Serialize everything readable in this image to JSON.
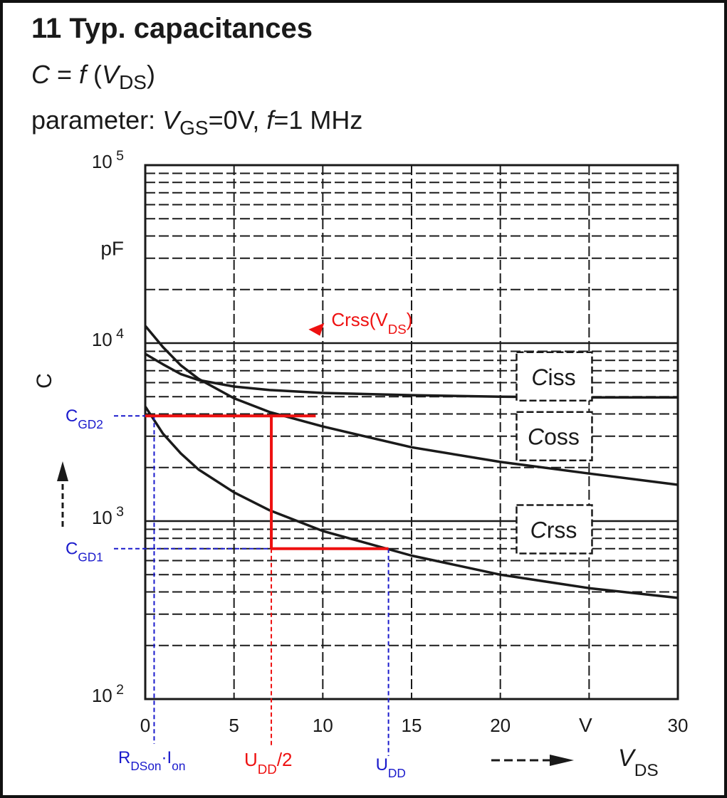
{
  "header": {
    "title": "11 Typ. capacitances",
    "func_c": "C",
    "func_eq": " = ",
    "func_f": "f",
    "func_open": " (",
    "func_v": "V",
    "func_sub": "DS",
    "func_close": ")",
    "param_prefix": "parameter: ",
    "param_v": "V",
    "param_sub": "GS",
    "param_mid": "=0V, ",
    "param_f": "f",
    "param_end": "=1 MHz"
  },
  "colors": {
    "curve": "#1a1a1a",
    "grid": "#1a1a1a",
    "red": "#ee1111",
    "blue": "#1a1acc"
  },
  "chart_data": {
    "type": "line",
    "x_scale": "linear",
    "y_scale": "log",
    "xlim": [
      0,
      30
    ],
    "ylim": [
      100,
      100000
    ],
    "x_ticks": [
      {
        "value": 0,
        "label": "0"
      },
      {
        "value": 5,
        "label": "5"
      },
      {
        "value": 10,
        "label": "10"
      },
      {
        "value": 15,
        "label": "15"
      },
      {
        "value": 20,
        "label": "20"
      },
      {
        "value": 30,
        "label": "30"
      }
    ],
    "x_unit_label": "V",
    "y_ticks": [
      {
        "value": 100,
        "base": "10",
        "exp": "2"
      },
      {
        "value": 1000,
        "base": "10",
        "exp": "3"
      },
      {
        "value": 10000,
        "base": "10",
        "exp": "4"
      },
      {
        "value": 100000,
        "base": "10",
        "exp": "5"
      }
    ],
    "y_unit_label": "pF",
    "ylabel": "C",
    "xlabel": "V",
    "xlabel_sub": "DS",
    "grid": true,
    "series": [
      {
        "name": "C",
        "sub": "iss",
        "label_x": 23,
        "label_y": 6500,
        "x": [
          0,
          1,
          2,
          3,
          5,
          7,
          10,
          15,
          20,
          25,
          30
        ],
        "y": [
          8700,
          7600,
          6700,
          6200,
          5700,
          5450,
          5250,
          5100,
          5000,
          4950,
          4950
        ]
      },
      {
        "name": "C",
        "sub": "oss",
        "label_x": 23,
        "label_y": 3000,
        "x": [
          0,
          1,
          2,
          3,
          5,
          7,
          10,
          15,
          20,
          25,
          30
        ],
        "y": [
          12500,
          9500,
          7500,
          6300,
          4900,
          4100,
          3400,
          2600,
          2150,
          1850,
          1600
        ]
      },
      {
        "name": "C",
        "sub": "rss",
        "label_x": 23,
        "label_y": 900,
        "x": [
          0,
          1,
          2,
          3,
          5,
          7,
          10,
          15,
          20,
          25,
          30
        ],
        "y": [
          4400,
          3100,
          2400,
          1950,
          1450,
          1150,
          880,
          640,
          500,
          420,
          370
        ]
      }
    ],
    "annotations": {
      "crss_label": "Crss(V",
      "crss_label_sub": "DS",
      "crss_label_close": ")",
      "crss_label_at": [
        10,
        12500
      ],
      "cgd2": {
        "text": "C",
        "sub": "GD2",
        "y": 3900
      },
      "cgd1": {
        "text": "C",
        "sub": "GD1",
        "y": 700
      },
      "rdson_x": 0.5,
      "rdson_label": "R",
      "rdson_sub1": "DSon",
      "rdson_mid": "·I",
      "rdson_sub2": "on",
      "udd_half_x": 7.1,
      "udd_half_label": "U",
      "udd_half_sub": "DD",
      "udd_half_suffix": "/2",
      "udd_x": 13.7,
      "udd_label": "U",
      "udd_sub": "DD",
      "red_step": {
        "x_start": 0,
        "x_high_end": 9.6,
        "x_mid": 7.1,
        "x_low_end": 13.7,
        "y_high": 3900,
        "y_low": 700
      }
    }
  }
}
